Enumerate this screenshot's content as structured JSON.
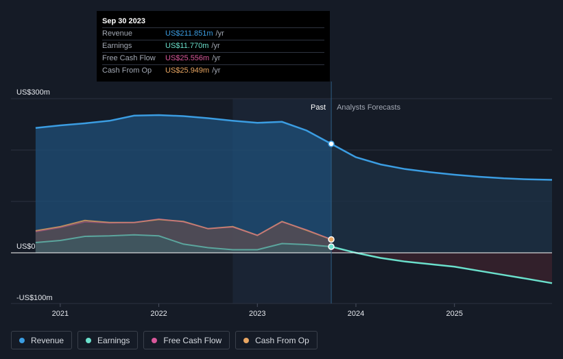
{
  "tooltip": {
    "date": "Sep 30 2023",
    "rows": [
      {
        "label": "Revenue",
        "value": "US$211.851m",
        "unit": "/yr",
        "color": "#3b9de2"
      },
      {
        "label": "Earnings",
        "value": "US$11.770m",
        "unit": "/yr",
        "color": "#6be0cc"
      },
      {
        "label": "Free Cash Flow",
        "value": "US$25.556m",
        "unit": "/yr",
        "color": "#d9589b"
      },
      {
        "label": "Cash From Op",
        "value": "US$25.949m",
        "unit": "/yr",
        "color": "#e9a662"
      }
    ]
  },
  "legend": [
    {
      "label": "Revenue",
      "color": "#3b9de2"
    },
    {
      "label": "Earnings",
      "color": "#6be0cc"
    },
    {
      "label": "Free Cash Flow",
      "color": "#d9589b"
    },
    {
      "label": "Cash From Op",
      "color": "#e9a662"
    }
  ],
  "chart_data": {
    "type": "area",
    "y_tick_labels": [
      "US$300m",
      "US$0",
      "-US$100m"
    ],
    "ylim": [
      -100,
      300
    ],
    "xlim": [
      2020.5,
      2025.99
    ],
    "x_ticks": [
      2021,
      2022,
      2023,
      2024,
      2025
    ],
    "x_tick_labels": [
      "2021",
      "2022",
      "2023",
      "2024",
      "2025"
    ],
    "past_label": "Past",
    "forecast_label": "Analysts Forecasts",
    "divider_x": 2023.75,
    "highlight_start_x": 2022.75,
    "series": [
      {
        "name": "Revenue",
        "color": "#3b9de2",
        "past": [
          [
            2020.75,
            243
          ],
          [
            2021.0,
            248
          ],
          [
            2021.25,
            252
          ],
          [
            2021.5,
            257
          ],
          [
            2021.75,
            267
          ],
          [
            2022.0,
            268
          ],
          [
            2022.25,
            266
          ],
          [
            2022.5,
            262
          ],
          [
            2022.75,
            257
          ],
          [
            2023.0,
            253
          ],
          [
            2023.25,
            255
          ],
          [
            2023.5,
            238
          ],
          [
            2023.75,
            212
          ]
        ],
        "forecast": [
          [
            2023.75,
            212
          ],
          [
            2024.0,
            186
          ],
          [
            2024.25,
            172
          ],
          [
            2024.5,
            163
          ],
          [
            2024.75,
            157
          ],
          [
            2025.0,
            152
          ],
          [
            2025.25,
            148
          ],
          [
            2025.5,
            145
          ],
          [
            2025.75,
            143
          ],
          [
            2025.99,
            142
          ]
        ]
      },
      {
        "name": "Earnings",
        "color": "#6be0cc",
        "past": [
          [
            2020.75,
            20
          ],
          [
            2021.0,
            24
          ],
          [
            2021.25,
            32
          ],
          [
            2021.5,
            33
          ],
          [
            2021.75,
            35
          ],
          [
            2022.0,
            33
          ],
          [
            2022.25,
            17
          ],
          [
            2022.5,
            10
          ],
          [
            2022.75,
            6
          ],
          [
            2023.0,
            6
          ],
          [
            2023.25,
            18
          ],
          [
            2023.5,
            16
          ],
          [
            2023.75,
            12
          ]
        ],
        "forecast": [
          [
            2023.75,
            12
          ],
          [
            2024.0,
            0
          ],
          [
            2024.25,
            -10
          ],
          [
            2024.5,
            -17
          ],
          [
            2024.75,
            -22
          ],
          [
            2025.0,
            -27
          ],
          [
            2025.25,
            -35
          ],
          [
            2025.5,
            -43
          ],
          [
            2025.75,
            -51
          ],
          [
            2025.99,
            -59
          ]
        ]
      },
      {
        "name": "Free Cash Flow",
        "color": "#d9589b",
        "past": [
          [
            2020.75,
            41
          ],
          [
            2021.0,
            49
          ],
          [
            2021.25,
            60
          ],
          [
            2021.5,
            58
          ],
          [
            2021.75,
            59
          ],
          [
            2022.0,
            66
          ],
          [
            2022.25,
            60
          ],
          [
            2022.5,
            47
          ],
          [
            2022.75,
            50
          ],
          [
            2023.0,
            34
          ],
          [
            2023.25,
            60
          ],
          [
            2023.5,
            45
          ],
          [
            2023.75,
            26
          ]
        ],
        "forecast": []
      },
      {
        "name": "Cash From Op",
        "color": "#e9a662",
        "past": [
          [
            2020.75,
            43
          ],
          [
            2021.0,
            51
          ],
          [
            2021.25,
            63
          ],
          [
            2021.5,
            59
          ],
          [
            2021.75,
            59
          ],
          [
            2022.0,
            65
          ],
          [
            2022.25,
            61
          ],
          [
            2022.5,
            47
          ],
          [
            2022.75,
            51
          ],
          [
            2023.0,
            34
          ],
          [
            2023.25,
            61
          ],
          [
            2023.5,
            44
          ],
          [
            2023.75,
            26
          ]
        ],
        "forecast": []
      }
    ]
  }
}
